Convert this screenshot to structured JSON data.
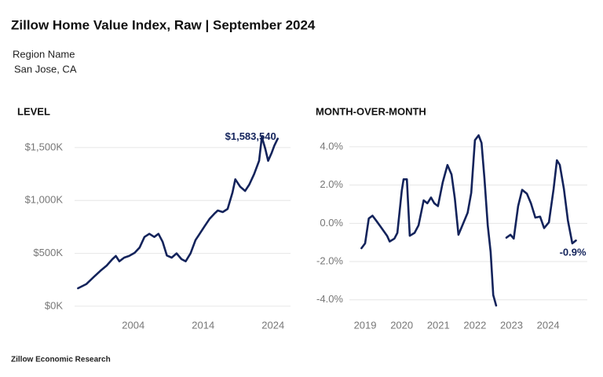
{
  "title": "Zillow Home Value Index, Raw | September 2024",
  "region_label": "Region Name",
  "region": "San Jose, CA",
  "footer": "Zillow Economic Research",
  "chart_data": [
    {
      "type": "line",
      "title": "LEVEL",
      "color": "#13235b",
      "grid": true,
      "xlim": [
        1995.6,
        2026.5
      ],
      "xticks": [
        2004,
        2014,
        2024
      ],
      "ylim": [
        -75000,
        1670000
      ],
      "yticks": [
        {
          "value": 0,
          "label": "$0K"
        },
        {
          "value": 500000,
          "label": "$500K"
        },
        {
          "value": 1000000,
          "label": "$1,000K"
        },
        {
          "value": 1500000,
          "label": "$1,500K"
        }
      ],
      "x": [
        1996.1,
        1997.3,
        1998.4,
        1999.3,
        2000.2,
        2001.0,
        2001.5,
        2002.0,
        2002.7,
        2003.4,
        2004.2,
        2004.9,
        2005.6,
        2006.3,
        2007.0,
        2007.6,
        2008.2,
        2008.8,
        2009.5,
        2010.2,
        2010.9,
        2011.5,
        2012.2,
        2012.9,
        2013.5,
        2014.2,
        2014.9,
        2015.6,
        2016.1,
        2016.8,
        2017.5,
        2018.2,
        2018.6,
        2019.3,
        2020.0,
        2020.6,
        2021.3,
        2022.0,
        2022.4,
        2022.9,
        2023.3,
        2023.8,
        2024.2,
        2024.67
      ],
      "values": [
        170000,
        210000,
        280000,
        335000,
        385000,
        445000,
        475000,
        425000,
        460000,
        475000,
        505000,
        555000,
        655000,
        685000,
        655000,
        685000,
        610000,
        480000,
        460000,
        500000,
        445000,
        425000,
        500000,
        625000,
        685000,
        755000,
        825000,
        875000,
        905000,
        890000,
        920000,
        1075000,
        1200000,
        1130000,
        1090000,
        1150000,
        1250000,
        1375000,
        1600000,
        1485000,
        1375000,
        1450000,
        1520000,
        1583540
      ],
      "annotations": [
        {
          "x": 2024.67,
          "value": 1583540,
          "label": "$1,583,540"
        }
      ]
    },
    {
      "type": "line",
      "title": "MONTH-OVER-MONTH",
      "color": "#13235b",
      "grid": true,
      "xlim": [
        2018.57,
        2025.07
      ],
      "xticks": [
        2019,
        2020,
        2021,
        2022,
        2023,
        2024
      ],
      "ylim": [
        -4.75,
        4.9
      ],
      "yticks": [
        {
          "value": -4,
          "label": "-4.0%"
        },
        {
          "value": -2,
          "label": "-2.0%"
        },
        {
          "value": 0,
          "label": "0.0%"
        },
        {
          "value": 2,
          "label": "2.0%"
        },
        {
          "value": 4,
          "label": "4.0%"
        }
      ],
      "x": [
        2018.9,
        2019.0,
        2019.1,
        2019.2,
        2019.3,
        2019.45,
        2019.6,
        2019.67,
        2019.8,
        2019.88,
        2020.0,
        2020.05,
        2020.14,
        2020.22,
        2020.35,
        2020.46,
        2020.6,
        2020.7,
        2020.8,
        2020.89,
        2020.99,
        2021.12,
        2021.25,
        2021.36,
        2021.45,
        2021.55,
        2021.66,
        2021.8,
        2021.9,
        2022.0,
        2022.1,
        2022.18,
        2022.26,
        2022.35,
        2022.43,
        2022.5,
        2022.58,
        2022.7,
        2022.86,
        2022.97,
        2023.06,
        2023.18,
        2023.29,
        2023.42,
        2023.53,
        2023.65,
        2023.78,
        2023.89,
        2024.02,
        2024.15,
        2024.24,
        2024.32,
        2024.43,
        2024.54,
        2024.66,
        2024.76
      ],
      "values": [
        -1.3,
        -1.05,
        0.25,
        0.4,
        0.15,
        -0.25,
        -0.65,
        -0.95,
        -0.8,
        -0.5,
        1.7,
        2.3,
        2.3,
        -0.65,
        -0.5,
        -0.1,
        1.2,
        1.05,
        1.35,
        1.05,
        0.9,
        2.15,
        3.05,
        2.55,
        1.3,
        -0.6,
        -0.1,
        0.55,
        1.6,
        4.35,
        4.6,
        4.2,
        2.35,
        -0.1,
        -1.5,
        -3.75,
        -4.3,
        null,
        -0.75,
        -0.6,
        -0.8,
        0.9,
        1.75,
        1.55,
        1.05,
        0.3,
        0.35,
        -0.25,
        0.05,
        1.8,
        3.3,
        3.05,
        1.8,
        0.15,
        -1.05,
        -0.9
      ],
      "annotations": [
        {
          "x": 2024.76,
          "value": -0.9,
          "label": "-0.9%"
        }
      ]
    }
  ]
}
